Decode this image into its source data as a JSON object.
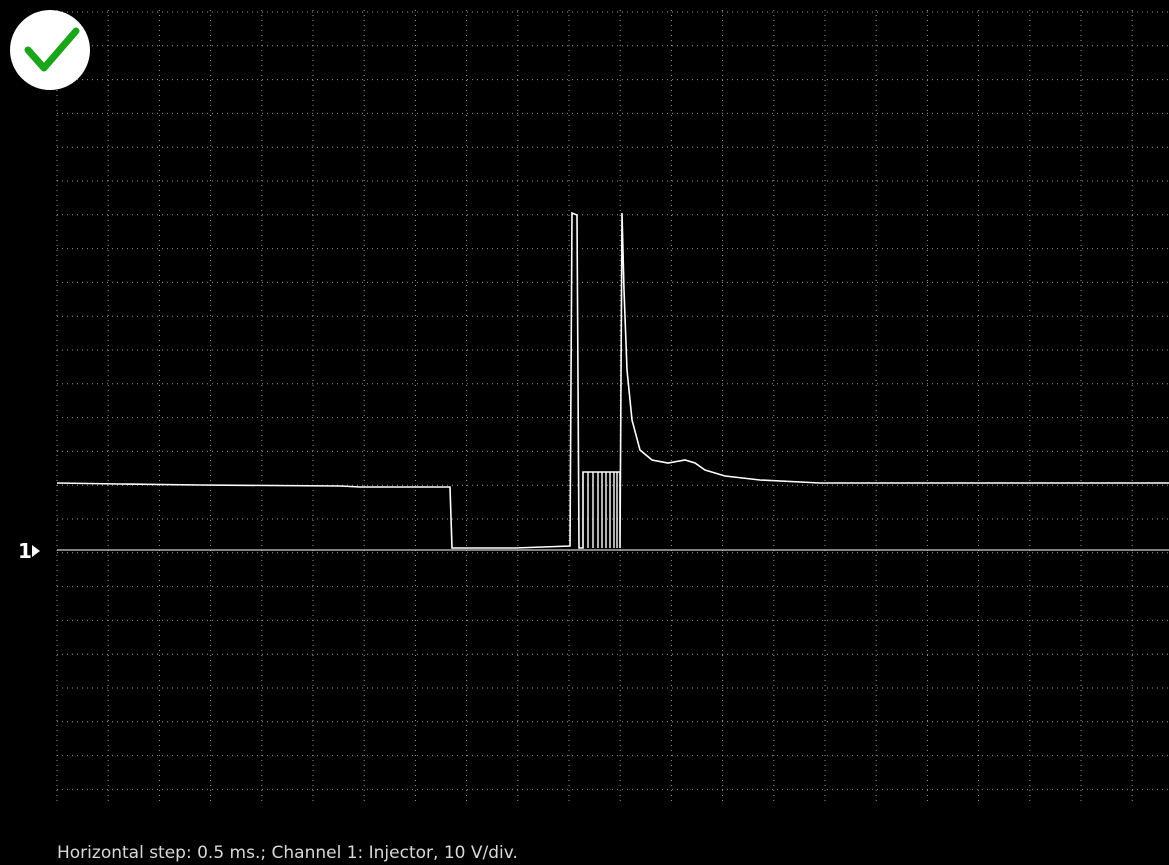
{
  "channel_marker": "1",
  "caption": "Horizontal step: 0.5 ms.; Channel 1: Injector, 10 V/div."
}
